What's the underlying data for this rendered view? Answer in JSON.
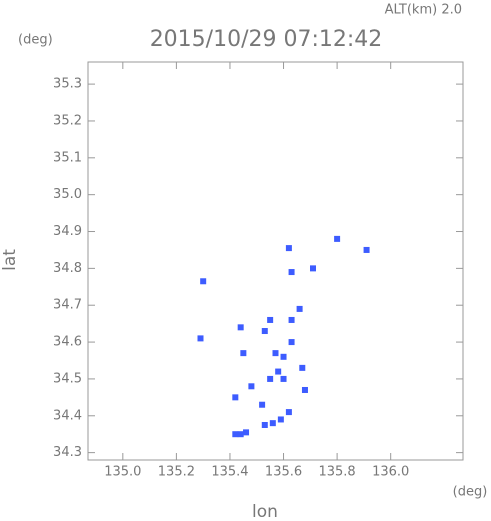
{
  "chart_data": {
    "type": "scatter",
    "annotation": "ALT(km) 2.0",
    "title": "2015/10/29 07:12:42",
    "y_unit": "(deg)",
    "x_unit": "(deg)",
    "xlabel": "lon",
    "ylabel": "lat",
    "xlim": [
      134.87,
      136.27
    ],
    "ylim": [
      34.28,
      35.36
    ],
    "xticks": [
      {
        "value": 135,
        "label": "135.0"
      },
      135.2,
      135.4,
      135.6,
      135.8,
      {
        "value": 136,
        "label": "136.0"
      }
    ],
    "yticks": [
      34.3,
      34.4,
      34.5,
      34.6,
      34.7,
      34.8,
      34.9,
      {
        "value": 35,
        "label": "35.0"
      },
      35.1,
      35.2,
      35.3
    ],
    "color": "#3d5cff",
    "x": [
      135.42,
      135.44,
      135.46,
      135.53,
      135.56,
      135.59,
      135.62,
      135.55,
      135.58,
      135.6,
      135.57,
      135.6,
      135.53,
      135.55,
      135.63,
      135.68,
      135.67,
      135.63,
      135.44,
      135.48,
      135.42,
      135.52,
      135.29,
      135.3,
      135.63,
      135.8,
      135.91,
      135.71,
      135.62,
      135.66,
      135.45
    ],
    "values": [
      34.35,
      34.35,
      34.355,
      34.375,
      34.38,
      34.39,
      34.41,
      34.5,
      34.52,
      34.5,
      34.57,
      34.56,
      34.63,
      34.66,
      34.66,
      34.47,
      34.53,
      34.6,
      34.64,
      34.48,
      34.45,
      34.43,
      34.61,
      34.765,
      34.79,
      34.88,
      34.85,
      34.8,
      34.855,
      34.69,
      34.57
    ]
  }
}
